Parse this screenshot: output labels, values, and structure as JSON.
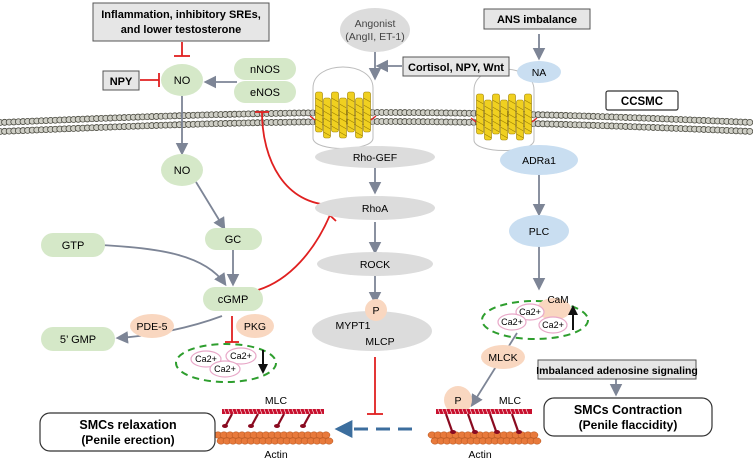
{
  "boxes": {
    "inflammation": [
      "Inflammation, inhibitory SREs,",
      "and lower testosterone"
    ],
    "npy": "NPY",
    "ans": "ANS imbalance",
    "cortisol": "Cortisol, NPY, Wnt",
    "ccsmc": "CCSMC",
    "adenosine": "Imbalanced adenosine signaling",
    "relaxation": [
      "SMCs relaxation",
      "(Penile erection)"
    ],
    "contraction": [
      "SMCs Contraction",
      "(Penile flaccidity)"
    ]
  },
  "nodes": {
    "agonist": [
      "Angonist",
      "(AngII, ET-1)"
    ],
    "no1": "NO",
    "nnos": "nNOS",
    "enos": "eNOS",
    "no2": "NO",
    "gc": "GC",
    "gtp": "GTP",
    "cgmp": "cGMP",
    "gmp": "5’ GMP",
    "pde5": "PDE-5",
    "pkg": "PKG",
    "rhogef": "Rho-GEF",
    "rhoa": "RhoA",
    "rock": "ROCK",
    "p_mlcp": "P",
    "mypt1": "MYPT1",
    "mlcp": "MLCP",
    "na": "NA",
    "adra1": "ADRa1",
    "plc": "PLC",
    "cam": "CaM",
    "mlck": "MLCK",
    "p_mlc": "P"
  },
  "labels": {
    "ca_left": [
      "Ca2+",
      "Ca2+",
      "Ca2+"
    ],
    "ca_right": [
      "Ca2+",
      "Ca2+",
      "Ca2+"
    ],
    "mlc_left": "MLC",
    "actin_left": "Actin",
    "mlc_right": "MLC",
    "actin_right": "Actin"
  },
  "colors": {
    "green_node": "#d5e8c8",
    "blue_node": "#c9def1",
    "grey_node": "#dcdcdc",
    "orange_node": "#f9d7c0",
    "inhibit_red": "#e02020",
    "arrow_grey": "#7d8596",
    "dash_green": "#2e9e2e",
    "dash_blue": "#3c6e9e",
    "actin": "#e87a3c",
    "myosin_red": "#c8102e"
  }
}
